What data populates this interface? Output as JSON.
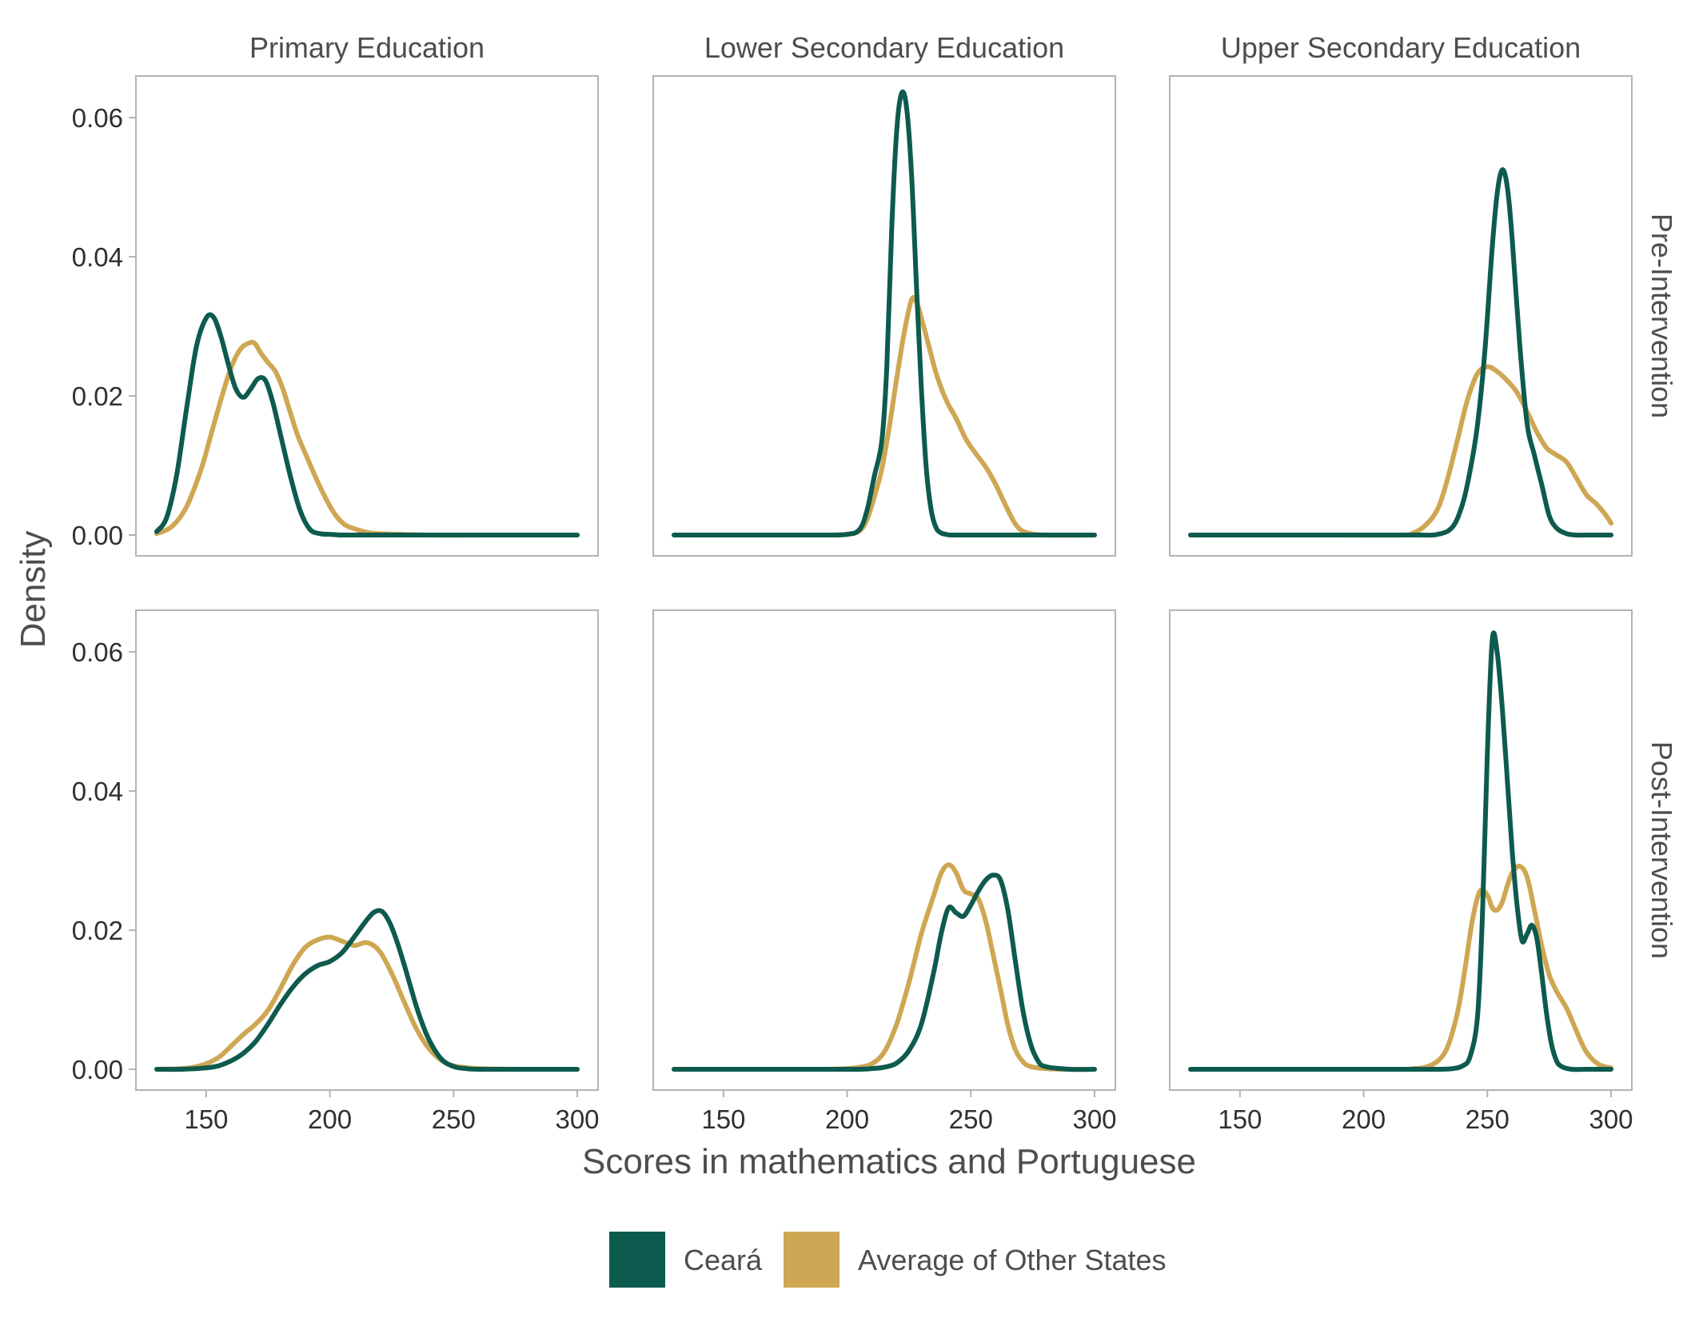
{
  "chart_data": {
    "type": "line",
    "xlabel": "Scores in mathematics and Portuguese",
    "ylabel": "Density",
    "xlim": [
      130,
      300
    ],
    "ylim": [
      0,
      0.063
    ],
    "x_ticks": [
      150,
      200,
      250,
      300
    ],
    "x_tick_labels": [
      "150",
      "200",
      "250",
      "300"
    ],
    "y_ticks": [
      0,
      0.02,
      0.04,
      0.06
    ],
    "y_tick_labels": [
      "0.00",
      "0.02",
      "0.04",
      "0.06"
    ],
    "grid": false,
    "legend_position": "bottom",
    "columns": [
      "Primary Education",
      "Lower Secondary Education",
      "Upper Secondary Education"
    ],
    "rows": [
      "Pre-Intervention",
      "Post-Intervention"
    ],
    "legend": [
      {
        "name": "Ceará",
        "color": "#0d5b4e"
      },
      {
        "name": "Average of Other States",
        "color": "#cfa653"
      }
    ],
    "panels": [
      {
        "column": "Primary Education",
        "row": "Pre-Intervention",
        "series": [
          {
            "name": "Ceará",
            "x": [
              130,
              134,
              138,
              142,
              146,
              150,
              153,
              156,
              159,
              162,
              165,
              168,
              171,
              174,
              177,
              180,
              184,
              188,
              192,
              196,
              200,
              205,
              210,
              220,
              240,
              260,
              280,
              300
            ],
            "y": [
              0.0005,
              0.0025,
              0.0085,
              0.018,
              0.027,
              0.0312,
              0.0313,
              0.0285,
              0.0245,
              0.021,
              0.0198,
              0.021,
              0.0225,
              0.0222,
              0.019,
              0.0145,
              0.0085,
              0.0035,
              0.0008,
              0.0002,
              0.0001,
              0,
              0,
              0,
              0,
              0,
              0,
              0
            ]
          },
          {
            "name": "Average of Other States",
            "x": [
              130,
              136,
              142,
              148,
              152,
              156,
              160,
              164,
              168,
              170,
              172,
              175,
              178,
              181,
              184,
              187,
              190,
              194,
              198,
              202,
              206,
              210,
              215,
              220,
              240,
              260,
              280,
              300
            ],
            "y": [
              0.0002,
              0.0012,
              0.004,
              0.0095,
              0.0145,
              0.0195,
              0.024,
              0.0268,
              0.0277,
              0.0274,
              0.0262,
              0.0248,
              0.0235,
              0.021,
              0.0176,
              0.0143,
              0.0118,
              0.0085,
              0.0055,
              0.003,
              0.0015,
              0.0009,
              0.0004,
              0.0002,
              0,
              0,
              0,
              0
            ]
          }
        ]
      },
      {
        "column": "Lower Secondary Education",
        "row": "Pre-Intervention",
        "series": [
          {
            "name": "Ceará",
            "x": [
              130,
              150,
              170,
              190,
              200,
              205,
              208,
              211,
              214,
              216,
              218,
              220,
              222,
              224,
              226,
              228,
              230,
              232,
              234,
              236,
              238,
              240,
              242,
              250,
              270,
              300
            ],
            "y": [
              0,
              0,
              0,
              0,
              0.0001,
              0.0008,
              0.0035,
              0.0085,
              0.0135,
              0.024,
              0.044,
              0.058,
              0.0635,
              0.0615,
              0.052,
              0.036,
              0.021,
              0.0095,
              0.0035,
              0.001,
              0.0003,
              0.0001,
              0,
              0,
              0,
              0
            ]
          },
          {
            "name": "Average of Other States",
            "x": [
              130,
              150,
              170,
              190,
              200,
              205,
              208,
              211,
              214,
              217,
              220,
              223,
              226,
              228,
              230,
              233,
              236,
              240,
              244,
              248,
              252,
              256,
              260,
              264,
              268,
              272,
              280,
              300
            ],
            "y": [
              0,
              0,
              0,
              0,
              0.0001,
              0.0006,
              0.0022,
              0.0055,
              0.0095,
              0.0155,
              0.0225,
              0.029,
              0.0338,
              0.0335,
              0.0312,
              0.0272,
              0.0232,
              0.0194,
              0.0168,
              0.0138,
              0.0117,
              0.0098,
              0.0073,
              0.0043,
              0.0016,
              0.0004,
              0,
              0
            ]
          }
        ]
      },
      {
        "column": "Upper Secondary Education",
        "row": "Pre-Intervention",
        "series": [
          {
            "name": "Ceará",
            "x": [
              130,
              160,
              190,
              220,
              230,
              236,
              240,
              243,
              246,
              249,
              252,
              254,
              256,
              258,
              260,
              263,
              266,
              269,
              272,
              275,
              278,
              282,
              286,
              290,
              300
            ],
            "y": [
              0,
              0,
              0,
              0,
              0.0001,
              0.0012,
              0.0045,
              0.0092,
              0.0158,
              0.0265,
              0.0415,
              0.0492,
              0.0525,
              0.0502,
              0.0428,
              0.0278,
              0.0162,
              0.0115,
              0.0072,
              0.0028,
              0.001,
              0.0002,
              0,
              0,
              0
            ]
          },
          {
            "name": "Average of Other States",
            "x": [
              130,
              160,
              190,
              215,
              220,
              225,
              230,
              234,
              238,
              242,
              246,
              250,
              254,
              258,
              262,
              266,
              270,
              274,
              278,
              282,
              286,
              290,
              294,
              298,
              300
            ],
            "y": [
              0,
              0,
              0,
              0,
              0.0003,
              0.0014,
              0.0038,
              0.0082,
              0.0138,
              0.0195,
              0.0232,
              0.0242,
              0.0235,
              0.0222,
              0.0205,
              0.0178,
              0.0148,
              0.0125,
              0.0115,
              0.0105,
              0.0082,
              0.0058,
              0.0045,
              0.0028,
              0.0017
            ]
          }
        ]
      },
      {
        "column": "Primary Education",
        "row": "Post-Intervention",
        "series": [
          {
            "name": "Ceará",
            "x": [
              130,
              140,
              150,
              155,
              160,
              165,
              170,
              175,
              180,
              185,
              190,
              195,
              200,
              205,
              210,
              215,
              218,
              221,
              224,
              227,
              230,
              233,
              236,
              240,
              245,
              250,
              255,
              260,
              280,
              300
            ],
            "y": [
              0,
              0,
              0.0002,
              0.0005,
              0.0012,
              0.0023,
              0.004,
              0.0065,
              0.0093,
              0.0118,
              0.0137,
              0.0149,
              0.0155,
              0.0168,
              0.0191,
              0.0215,
              0.0226,
              0.0227,
              0.0212,
              0.0185,
              0.0151,
              0.0114,
              0.0079,
              0.0043,
              0.0015,
              0.0004,
              0.0001,
              0,
              0,
              0
            ]
          },
          {
            "name": "Average of Other States",
            "x": [
              130,
              140,
              145,
              150,
              155,
              160,
              165,
              170,
              175,
              180,
              185,
              190,
              195,
              200,
              205,
              210,
              215,
              220,
              225,
              230,
              235,
              240,
              245,
              250,
              260,
              280,
              300
            ],
            "y": [
              0,
              0.0001,
              0.0003,
              0.0008,
              0.0017,
              0.0033,
              0.005,
              0.0065,
              0.0085,
              0.0116,
              0.015,
              0.0175,
              0.0186,
              0.019,
              0.0184,
              0.0178,
              0.0182,
              0.017,
              0.0138,
              0.0097,
              0.0058,
              0.003,
              0.0013,
              0.0005,
              0.0001,
              0,
              0
            ]
          }
        ]
      },
      {
        "column": "Lower Secondary Education",
        "row": "Post-Intervention",
        "series": [
          {
            "name": "Ceará",
            "x": [
              130,
              160,
              190,
              205,
              210,
              215,
              220,
              225,
              230,
              235,
              238,
              241,
              244,
              247,
              250,
              253,
              256,
              259,
              262,
              265,
              268,
              271,
              274,
              277,
              280,
              290,
              300
            ],
            "y": [
              0,
              0,
              0,
              0,
              0.0001,
              0.0003,
              0.0009,
              0.0027,
              0.0065,
              0.014,
              0.0195,
              0.0232,
              0.0225,
              0.022,
              0.0236,
              0.0256,
              0.0272,
              0.0279,
              0.0272,
              0.0228,
              0.0155,
              0.0085,
              0.0038,
              0.0013,
              0.0004,
              0,
              0
            ]
          },
          {
            "name": "Average of Other States",
            "x": [
              130,
              160,
              190,
              200,
              205,
              210,
              215,
              220,
              225,
              230,
              235,
              238,
              241,
              244,
              247,
              250,
              253,
              256,
              259,
              262,
              265,
              268,
              271,
              274,
              280,
              290,
              300
            ],
            "y": [
              0,
              0,
              0,
              0.0001,
              0.0003,
              0.0008,
              0.0025,
              0.0065,
              0.0125,
              0.0195,
              0.025,
              0.0282,
              0.0294,
              0.0283,
              0.0258,
              0.0252,
              0.0245,
              0.0213,
              0.0165,
              0.0115,
              0.0063,
              0.0028,
              0.0011,
              0.0004,
              0.0001,
              0,
              0
            ]
          }
        ]
      },
      {
        "column": "Upper Secondary Education",
        "row": "Post-Intervention",
        "series": [
          {
            "name": "Ceará",
            "x": [
              130,
              160,
              190,
              220,
              230,
              236,
              240,
              243,
              246,
              248,
              250,
              252,
              254,
              256,
              258,
              260,
              262,
              264,
              266,
              268,
              270,
              272,
              274,
              276,
              278,
              280,
              284,
              290,
              300
            ],
            "y": [
              0,
              0,
              0,
              0,
              0,
              0.0001,
              0.0005,
              0.0018,
              0.0075,
              0.022,
              0.0455,
              0.0618,
              0.0598,
              0.052,
              0.042,
              0.0316,
              0.0236,
              0.0185,
              0.0194,
              0.0207,
              0.0188,
              0.0136,
              0.0078,
              0.0035,
              0.0012,
              0.0004,
              0,
              0,
              0
            ]
          },
          {
            "name": "Average of Other States",
            "x": [
              130,
              160,
              190,
              215,
              220,
              225,
              230,
              234,
              238,
              241,
              244,
              247,
              250,
              252,
              254,
              256,
              258,
              260,
              263,
              266,
              269,
              272,
              275,
              278,
              282,
              286,
              290,
              295,
              300
            ],
            "y": [
              0,
              0,
              0,
              0,
              0.0001,
              0.0003,
              0.0012,
              0.0033,
              0.0083,
              0.0145,
              0.0215,
              0.0256,
              0.025,
              0.0232,
              0.0229,
              0.024,
              0.0263,
              0.0282,
              0.0292,
              0.0277,
              0.0229,
              0.0177,
              0.0136,
              0.0112,
              0.0088,
              0.0055,
              0.0025,
              0.0007,
              0.0002
            ]
          }
        ]
      }
    ]
  }
}
